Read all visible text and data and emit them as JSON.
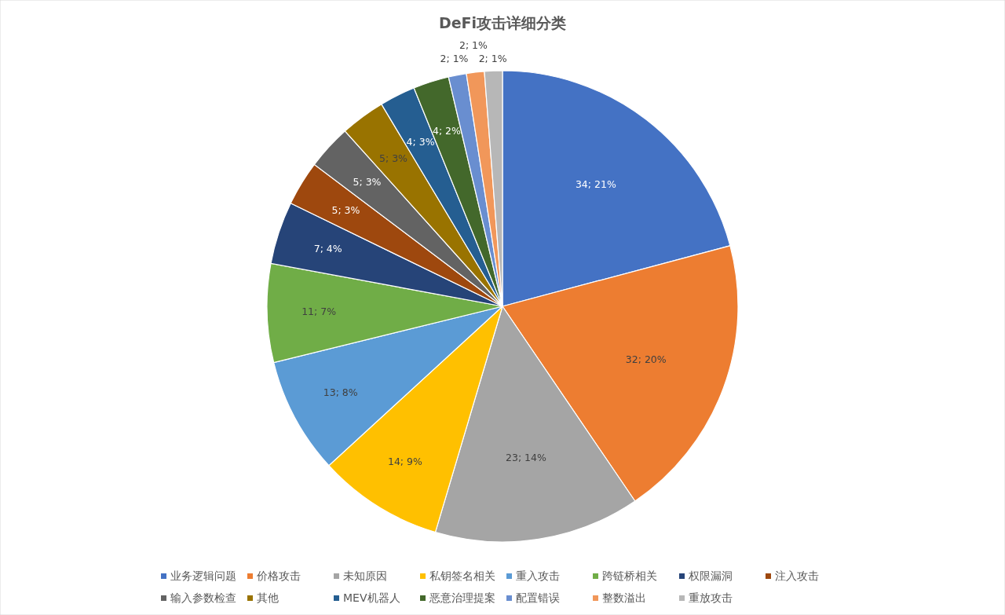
{
  "chart_data": {
    "type": "pie",
    "title": "DeFi攻击详细分类",
    "categories": [
      "业务逻辑问题",
      "价格攻击",
      "未知原因",
      "私钥签名相关",
      "重入攻击",
      "跨链桥相关",
      "权限漏洞",
      "注入攻击",
      "输入参数检查",
      "其他",
      "MEV机器人",
      "恶意治理提案",
      "配置错误",
      "整数溢出",
      "重放攻击"
    ],
    "values": [
      34,
      32,
      23,
      14,
      13,
      11,
      7,
      5,
      5,
      5,
      4,
      4,
      2,
      2,
      2
    ],
    "value_labels": [
      "34; 21%",
      "32; 20%",
      "23; 14%",
      "14; 9%",
      "13; 8%",
      "11; 7%",
      "7; 4%",
      "5; 3%",
      "5; 3%",
      "5; 3%",
      "4; 3%",
      "4; 2%",
      "2; 1%",
      "2; 1%",
      "2; 1%"
    ],
    "colors": [
      "#4472c4",
      "#ed7d31",
      "#a5a5a5",
      "#ffc000",
      "#5b9bd5",
      "#70ad47",
      "#264478",
      "#9e480e",
      "#636363",
      "#997300",
      "#255e91",
      "#43682b",
      "#698ed0",
      "#f1975a",
      "#b7b7b7"
    ],
    "legend": "bottom"
  }
}
